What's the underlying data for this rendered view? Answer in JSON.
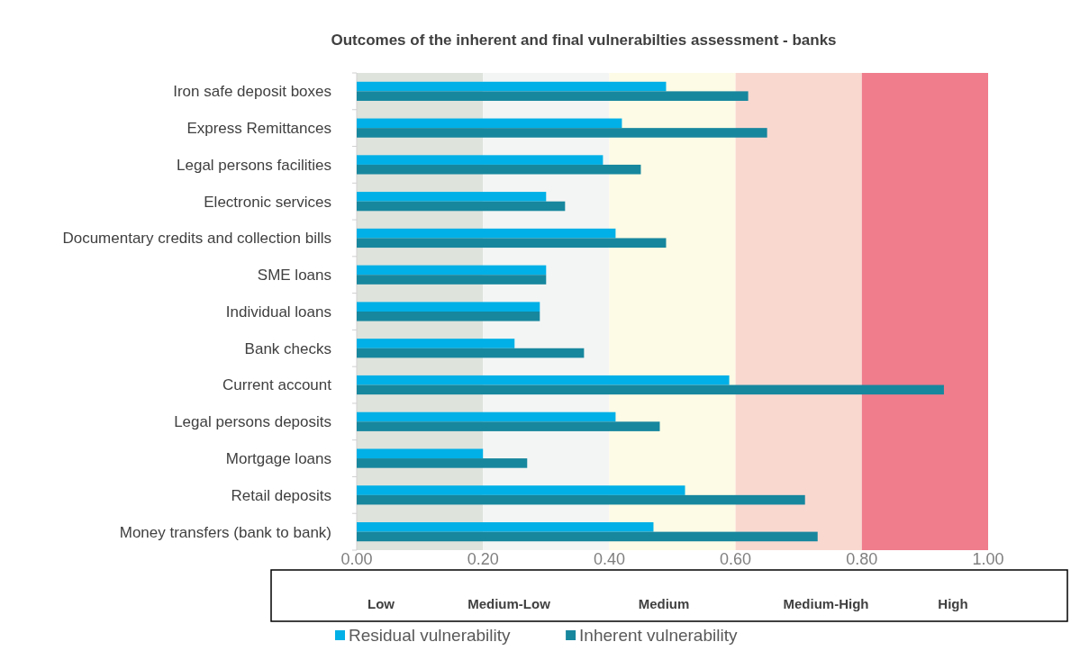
{
  "chart_data": {
    "type": "bar",
    "orientation": "horizontal",
    "title": "Outcomes of the inherent and final vulnerabilties assessment - banks",
    "categories": [
      "Iron safe deposit boxes",
      "Express Remittances",
      "Legal persons facilities",
      "Electronic services",
      "Documentary credits and collection bills",
      "SME loans",
      "Individual loans",
      "Bank checks",
      "Current account",
      "Legal persons deposits",
      "Mortgage loans",
      "Retail deposits",
      "Money transfers (bank to bank)"
    ],
    "series": [
      {
        "name": "Residual vulnerability",
        "color": "#00b0e6",
        "values": [
          0.49,
          0.42,
          0.39,
          0.3,
          0.41,
          0.3,
          0.29,
          0.25,
          0.59,
          0.41,
          0.2,
          0.52,
          0.47
        ]
      },
      {
        "name": "Inherent vulnerability",
        "color": "#17879e",
        "values": [
          0.62,
          0.65,
          0.45,
          0.33,
          0.49,
          0.3,
          0.29,
          0.36,
          0.93,
          0.48,
          0.27,
          0.71,
          0.73
        ]
      }
    ],
    "xlim": [
      0,
      1
    ],
    "xticks": [
      {
        "value": 0,
        "label": "0.00"
      },
      {
        "value": 0.2,
        "label": "0.20"
      },
      {
        "value": 0.4,
        "label": "0.40"
      },
      {
        "value": 0.6,
        "label": "0.60"
      },
      {
        "value": 0.8,
        "label": "0.80"
      },
      {
        "value": 1,
        "label": "1.00"
      }
    ],
    "bands": [
      {
        "axis": "x",
        "from": 0,
        "to": 0.2,
        "color": "#dee3dc"
      },
      {
        "axis": "x",
        "from": 0.2,
        "to": 0.4,
        "color": "#f3f5f4"
      },
      {
        "axis": "x",
        "from": 0.4,
        "to": 0.6,
        "color": "#fdfbe5"
      },
      {
        "axis": "x",
        "from": 0.6,
        "to": 0.8,
        "color": "#f9d8d0"
      },
      {
        "axis": "x",
        "from": 0.8,
        "to": 1,
        "color": "#ef7d8c"
      }
    ],
    "annotations": [
      "Low",
      "Medium-Low",
      "Medium",
      "Medium-High",
      "High"
    ],
    "legend": "bottom"
  }
}
